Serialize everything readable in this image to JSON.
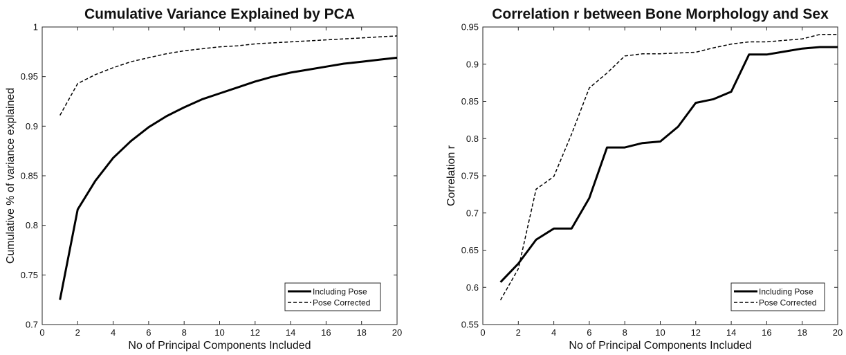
{
  "chart_data": [
    {
      "type": "line",
      "title": "Cumulative Variance Explained by PCA",
      "xlabel": "No of Principal Components Included",
      "ylabel": "Cumulative % of variance explained",
      "xlim": [
        0,
        20
      ],
      "ylim": [
        0.7,
        1.0
      ],
      "xticks": [
        "0",
        "2",
        "4",
        "6",
        "8",
        "10",
        "12",
        "14",
        "16",
        "18",
        "20"
      ],
      "yticks": [
        "0.7",
        "0.75",
        "0.8",
        "0.85",
        "0.9",
        "0.95",
        "1"
      ],
      "grid": false,
      "legend_position": "bottom-right",
      "x": [
        1,
        2,
        3,
        4,
        5,
        6,
        7,
        8,
        9,
        10,
        11,
        12,
        13,
        14,
        15,
        16,
        17,
        18,
        19,
        20
      ],
      "series": [
        {
          "name": "Including Pose",
          "style": "solid",
          "color": "#000000",
          "values": [
            0.725,
            0.816,
            0.845,
            0.868,
            0.885,
            0.899,
            0.91,
            0.919,
            0.927,
            0.933,
            0.939,
            0.945,
            0.95,
            0.954,
            0.957,
            0.96,
            0.963,
            0.965,
            0.967,
            0.969
          ]
        },
        {
          "name": "Pose Corrected",
          "style": "dashed",
          "color": "#000000",
          "values": [
            0.911,
            0.943,
            0.952,
            0.959,
            0.965,
            0.969,
            0.973,
            0.976,
            0.978,
            0.98,
            0.981,
            0.983,
            0.984,
            0.985,
            0.986,
            0.987,
            0.988,
            0.989,
            0.99,
            0.991
          ]
        }
      ]
    },
    {
      "type": "line",
      "title": "Correlation r between Bone Morphology and Sex",
      "xlabel": "No of Principal Components Included",
      "ylabel": "Correlation r",
      "xlim": [
        0,
        20
      ],
      "ylim": [
        0.55,
        0.95
      ],
      "xticks": [
        "0",
        "2",
        "4",
        "6",
        "8",
        "10",
        "12",
        "14",
        "16",
        "18",
        "20"
      ],
      "yticks": [
        "0.55",
        "0.6",
        "0.65",
        "0.7",
        "0.75",
        "0.8",
        "0.85",
        "0.9",
        "0.95"
      ],
      "grid": false,
      "legend_position": "bottom-right",
      "x": [
        1,
        2,
        3,
        4,
        5,
        6,
        7,
        8,
        9,
        10,
        11,
        12,
        13,
        14,
        15,
        16,
        17,
        18,
        19,
        20
      ],
      "series": [
        {
          "name": "Including Pose",
          "style": "solid",
          "color": "#000000",
          "values": [
            0.607,
            0.632,
            0.664,
            0.679,
            0.679,
            0.72,
            0.788,
            0.788,
            0.794,
            0.796,
            0.816,
            0.848,
            0.853,
            0.863,
            0.913,
            0.913,
            0.917,
            0.921,
            0.923,
            0.923
          ]
        },
        {
          "name": "Pose Corrected",
          "style": "dashed",
          "color": "#000000",
          "values": [
            0.583,
            0.625,
            0.732,
            0.749,
            0.806,
            0.868,
            0.888,
            0.911,
            0.914,
            0.914,
            0.915,
            0.916,
            0.922,
            0.927,
            0.93,
            0.93,
            0.932,
            0.934,
            0.94,
            0.94
          ]
        }
      ]
    }
  ]
}
